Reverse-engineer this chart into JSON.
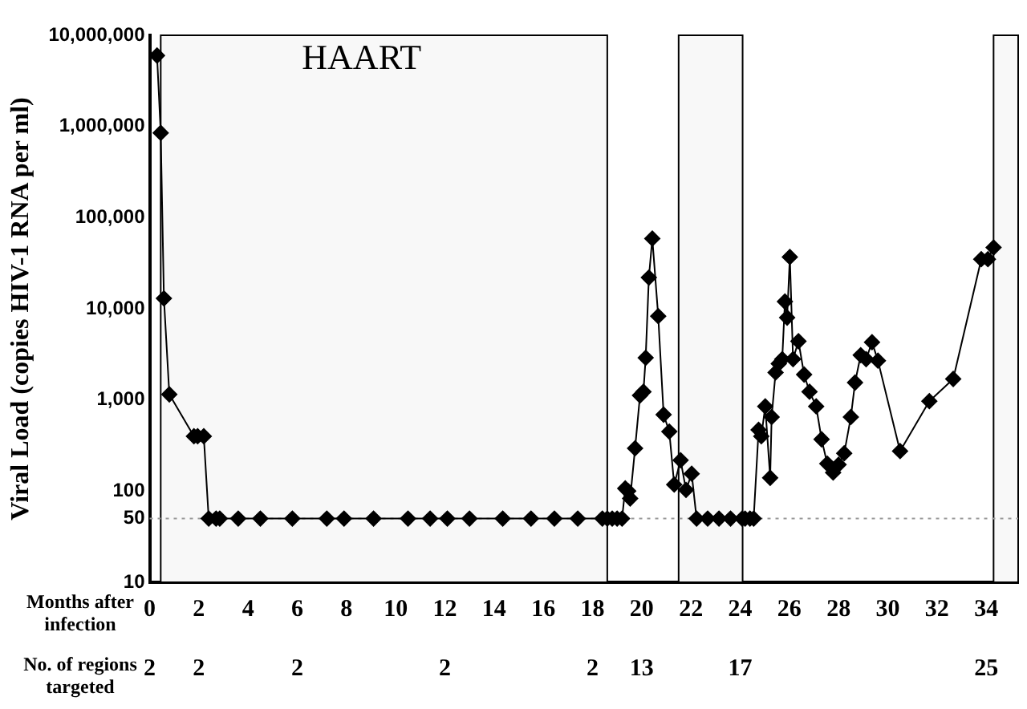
{
  "chart_data": {
    "type": "line",
    "ylabel": "Viral Load (copies HIV-1 RNA per ml)",
    "xlabel": "Months after infection",
    "log": "y",
    "grid": false,
    "legend": false,
    "marker": "diamond",
    "line_style": "solid",
    "xlim": [
      0,
      35.3
    ],
    "xticks": [
      0,
      2,
      4,
      6,
      8,
      10,
      12,
      14,
      16,
      18,
      20,
      22,
      24,
      26,
      28,
      30,
      32,
      34
    ],
    "ylim": [
      10,
      10000000
    ],
    "yticks": [
      10,
      50,
      100,
      {
        "value": 1000,
        "label": "1,000"
      },
      {
        "value": 10000,
        "label": "10,000"
      },
      {
        "value": 100000,
        "label": "100,000"
      },
      {
        "value": 1000000,
        "label": "1,000,000"
      },
      {
        "value": 10000000,
        "label": "10,000,000"
      }
    ],
    "series": [
      {
        "color": "#000000",
        "x": [
          0.3,
          0.45,
          0.58,
          0.8,
          1.8,
          1.95,
          2.2,
          2.4,
          2.7,
          2.85,
          3.6,
          4.5,
          5.8,
          7.2,
          7.9,
          9.1,
          10.5,
          11.4,
          12.1,
          13.0,
          14.35,
          15.5,
          16.45,
          17.4,
          18.4,
          18.6,
          18.8,
          19.0,
          19.2,
          19.33,
          19.45,
          19.53,
          19.73,
          19.93,
          20.07,
          20.16,
          20.29,
          20.43,
          20.67,
          20.89,
          21.12,
          21.32,
          21.58,
          21.8,
          22.03,
          22.23,
          22.68,
          23.14,
          23.61,
          24.08,
          24.2,
          24.4,
          24.55,
          24.75,
          24.86,
          25.02,
          25.22,
          25.28,
          25.44,
          25.57,
          25.71,
          25.82,
          25.91,
          26.02,
          26.15,
          26.37,
          26.6,
          26.82,
          27.09,
          27.31,
          27.54,
          27.78,
          28.0,
          28.23,
          28.5,
          28.67,
          28.9,
          29.12,
          29.36,
          29.6,
          30.5,
          31.69,
          32.66,
          33.8,
          34.07,
          34.3
        ],
        "values": [
          6000000,
          850000,
          13000,
          1150,
          400,
          400,
          400,
          50,
          50,
          50,
          50,
          50,
          50,
          50,
          50,
          50,
          50,
          50,
          50,
          50,
          50,
          50,
          50,
          50,
          50,
          50,
          50,
          50,
          50,
          107,
          100,
          83,
          295,
          1120,
          1230,
          2900,
          22000,
          59000,
          8300,
          690,
          450,
          118,
          218,
          103,
          155,
          50,
          50,
          50,
          50,
          50,
          50,
          50,
          50,
          470,
          400,
          850,
          140,
          650,
          2000,
          2500,
          2800,
          12000,
          8000,
          37000,
          2800,
          4400,
          1900,
          1230,
          850,
          370,
          200,
          160,
          195,
          260,
          650,
          1550,
          3100,
          2800,
          4300,
          2700,
          275,
          970,
          1700,
          35000,
          35000,
          47000
        ]
      }
    ],
    "bands": [
      {
        "axis": "x",
        "from": 0.45,
        "to": 18.6,
        "label": "HAART",
        "color": "#f8f8f8"
      },
      {
        "axis": "x",
        "from": 21.5,
        "to": 24.1,
        "color": "#f8f8f8"
      },
      {
        "axis": "x",
        "from": 34.3,
        "to": 35.3,
        "color": "#f8f8f8"
      }
    ],
    "ref_lines": [
      {
        "axis": "y",
        "value": 50,
        "color": "#999999",
        "line_style": "dotted"
      }
    ],
    "annotations": [
      "No. of regions targeted",
      "2",
      "2",
      "2",
      "2",
      "2",
      "13",
      "17",
      "25"
    ]
  }
}
